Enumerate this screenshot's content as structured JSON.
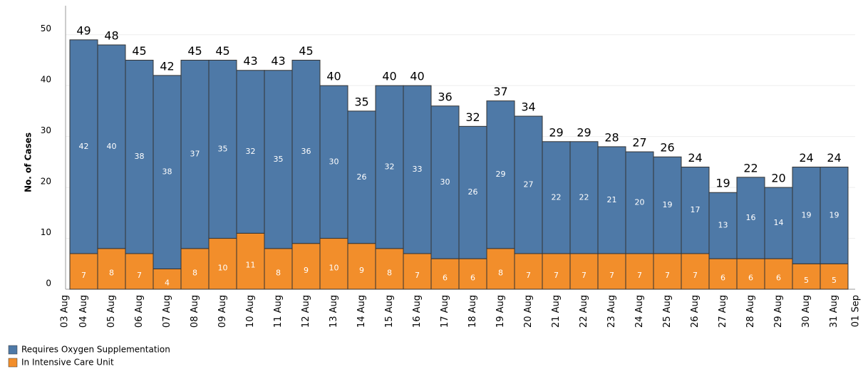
{
  "chart_data": {
    "type": "stacked_bar",
    "y_label": "No. of Cases",
    "categories": [
      "04 Aug",
      "05 Aug",
      "06 Aug",
      "07 Aug",
      "08 Aug",
      "09 Aug",
      "10 Aug",
      "11 Aug",
      "12 Aug",
      "13 Aug",
      "14 Aug",
      "15 Aug",
      "16 Aug",
      "17 Aug",
      "18 Aug",
      "19 Aug",
      "20 Aug",
      "21 Aug",
      "22 Aug",
      "23 Aug",
      "24 Aug",
      "25 Aug",
      "26 Aug",
      "27 Aug",
      "28 Aug",
      "29 Aug",
      "30 Aug",
      "31 Aug"
    ],
    "edge_labels": [
      "03 Aug",
      "01 Sep"
    ],
    "series": [
      {
        "name": "In Intensive Care Unit",
        "color": "#f28e2b",
        "values": [
          7,
          8,
          7,
          4,
          8,
          10,
          11,
          8,
          9,
          10,
          9,
          8,
          7,
          6,
          6,
          8,
          7,
          7,
          7,
          7,
          7,
          7,
          7,
          6,
          6,
          6,
          5,
          5
        ]
      },
      {
        "name": "Requires Oxygen Supplementation",
        "color": "#4e79a7",
        "values": [
          42,
          40,
          38,
          38,
          37,
          35,
          32,
          35,
          36,
          30,
          26,
          32,
          33,
          30,
          26,
          29,
          27,
          22,
          22,
          21,
          20,
          19,
          17,
          13,
          16,
          14,
          19,
          19
        ]
      }
    ],
    "totals": [
      49,
      48,
      45,
      42,
      45,
      45,
      43,
      43,
      45,
      40,
      35,
      40,
      40,
      36,
      32,
      37,
      34,
      29,
      29,
      28,
      27,
      26,
      24,
      19,
      22,
      20,
      24,
      24
    ],
    "ylim": [
      0,
      55.7
    ],
    "yticks": [
      0,
      10,
      20,
      30,
      40,
      50
    ],
    "grid": true
  }
}
